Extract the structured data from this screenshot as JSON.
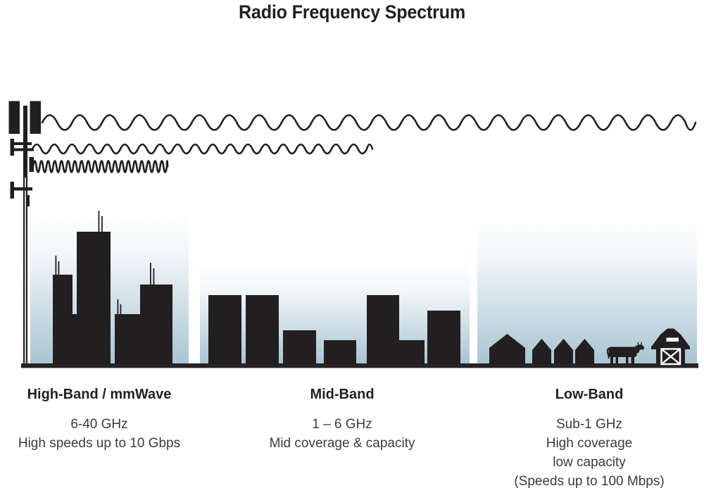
{
  "title": "Radio Frequency Spectrum",
  "bands": [
    {
      "id": "high-band",
      "heading": "High-Band / mmWave",
      "lines": [
        "6-40 GHz",
        "High speeds up to 10 Gbps"
      ]
    },
    {
      "id": "mid-band",
      "heading": "Mid-Band",
      "lines": [
        "1 – 6 GHz",
        "Mid coverage & capacity"
      ]
    },
    {
      "id": "low-band",
      "heading": "Low-Band",
      "lines": [
        "Sub-1 GHz",
        "High coverage",
        "low capacity",
        "(Speeds up to 100 Mbps)"
      ]
    }
  ],
  "icons": {
    "tower": "cell-tower-icon",
    "wave_top": "long-wavelength-wave-icon",
    "wave_middle": "medium-wavelength-wave-icon",
    "wave_bottom": "short-wavelength-wave-icon",
    "high_band_scene": "city-skyline",
    "mid_band_scene": "suburb-buildings",
    "low_band_scene": "rural-scene",
    "animal": "cow-icon",
    "farm_building": "barn-icon"
  },
  "colors": {
    "ink": "#221f20",
    "body_text": "#3c3c3c",
    "sky_bottom": "#a9c4d2",
    "background": "#ffffff"
  }
}
